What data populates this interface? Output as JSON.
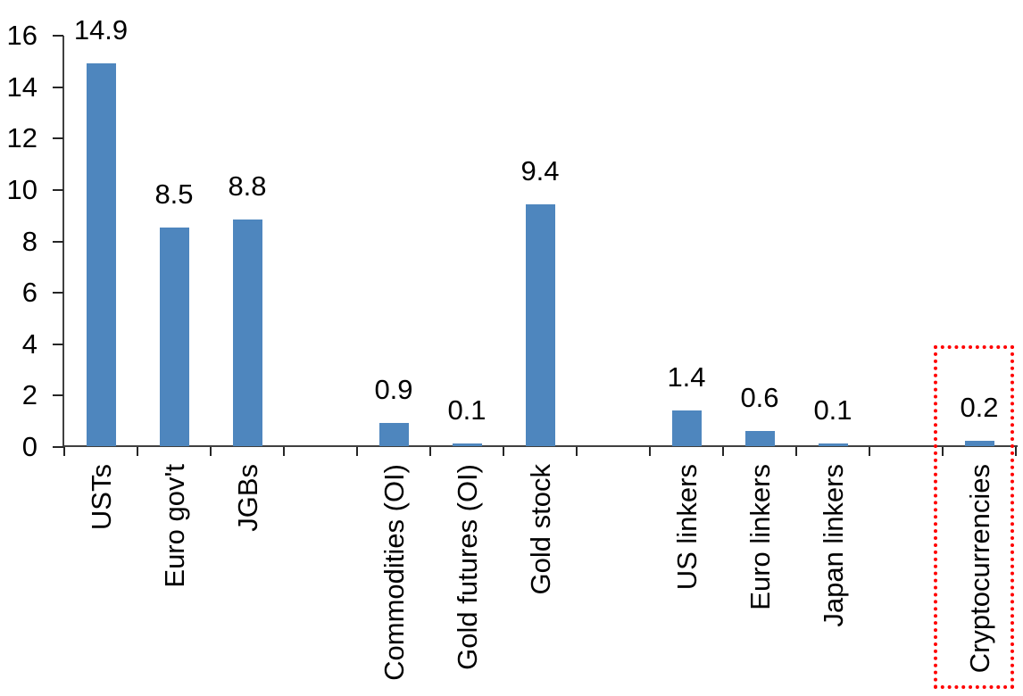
{
  "chart_data": {
    "type": "bar",
    "title": "",
    "categories": [
      "USTs",
      "Euro gov't",
      "JGBs",
      "Commodities (OI)",
      "Gold futures (OI)",
      "Gold stock",
      "US linkers",
      "Euro linkers",
      "Japan linkers",
      "Cryptocurrencies"
    ],
    "values": [
      14.9,
      8.5,
      8.8,
      0.9,
      0.1,
      9.4,
      1.4,
      0.6,
      0.1,
      0.2
    ],
    "value_labels": [
      "14.9",
      "8.5",
      "8.8",
      "0.9",
      "0.1",
      "9.4",
      "1.4",
      "0.6",
      "0.1",
      "0.2"
    ],
    "slots": [
      0,
      1,
      2,
      4,
      5,
      6,
      8,
      9,
      10,
      12
    ],
    "total_slots": 13,
    "y_ticks": [
      0,
      2,
      4,
      6,
      8,
      10,
      12,
      14,
      16
    ],
    "ylim": [
      0,
      16
    ],
    "grid": false,
    "legend": false,
    "xlabel": "",
    "ylabel": "",
    "x_tick_label_rotation_deg": 90,
    "bar_color": "#4E86BE",
    "axis_color": "#404040",
    "text_color": "#000000",
    "highlight": {
      "category": "Cryptocurrencies",
      "value": 0.2,
      "marker": "red-dotted-rectangle",
      "color": "#FF0000"
    }
  }
}
